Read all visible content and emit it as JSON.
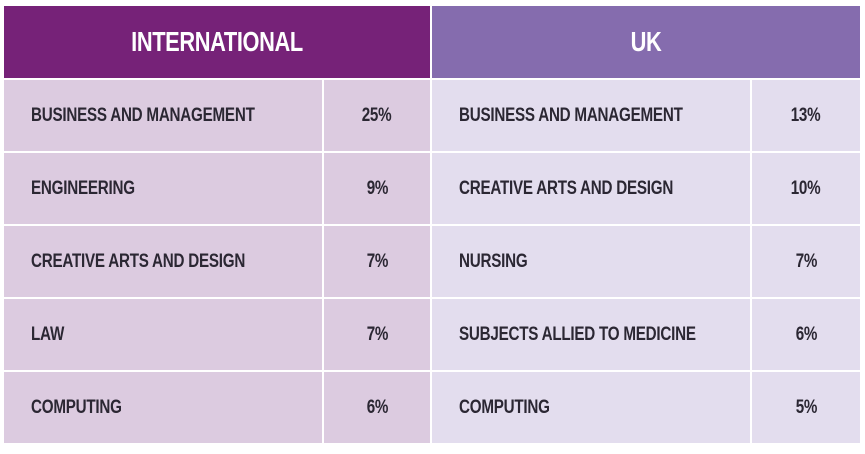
{
  "international": {
    "header": "INTERNATIONAL",
    "rows": [
      {
        "subject": "BUSINESS AND MANAGEMENT",
        "percent": "25%"
      },
      {
        "subject": "ENGINEERING",
        "percent": "9%"
      },
      {
        "subject": "CREATIVE ARTS AND DESIGN",
        "percent": "7%"
      },
      {
        "subject": "LAW",
        "percent": "7%"
      },
      {
        "subject": "COMPUTING",
        "percent": "6%"
      }
    ]
  },
  "uk": {
    "header": "UK",
    "rows": [
      {
        "subject": "BUSINESS AND MANAGEMENT",
        "percent": "13%"
      },
      {
        "subject": "CREATIVE ARTS AND DESIGN",
        "percent": "10%"
      },
      {
        "subject": "NURSING",
        "percent": "7%"
      },
      {
        "subject": "SUBJECTS ALLIED TO MEDICINE",
        "percent": "6%"
      },
      {
        "subject": "COMPUTING",
        "percent": "5%"
      }
    ]
  },
  "colors": {
    "international_header": "#762278",
    "uk_header": "#856cae",
    "international_cell": "#dccbe0",
    "uk_cell": "#e3ddee",
    "text": "#2b2733"
  }
}
